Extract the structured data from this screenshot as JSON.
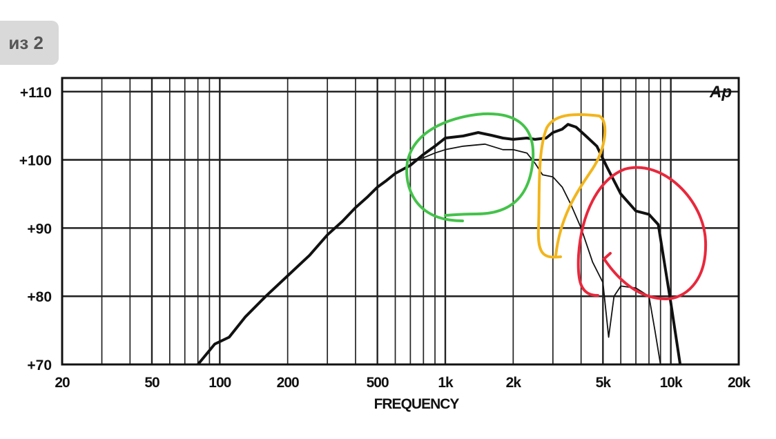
{
  "page_indicator": "из 2",
  "chart_data": {
    "type": "line",
    "title": "",
    "xlabel": "FREQUENCY",
    "ylabel": "",
    "logo": "Ap",
    "x_scale": "log",
    "xlim": [
      20,
      20000
    ],
    "ylim": [
      70,
      112
    ],
    "x_ticks": [
      {
        "v": 20,
        "label": "20"
      },
      {
        "v": 50,
        "label": "50"
      },
      {
        "v": 100,
        "label": "100"
      },
      {
        "v": 200,
        "label": "200"
      },
      {
        "v": 500,
        "label": "500"
      },
      {
        "v": 1000,
        "label": "1k"
      },
      {
        "v": 2000,
        "label": "2k"
      },
      {
        "v": 5000,
        "label": "5k"
      },
      {
        "v": 10000,
        "label": "10k"
      },
      {
        "v": 20000,
        "label": "20k"
      }
    ],
    "y_ticks": [
      {
        "v": 70,
        "label": "+70"
      },
      {
        "v": 80,
        "label": "+80"
      },
      {
        "v": 90,
        "label": "+90"
      },
      {
        "v": 100,
        "label": "+100"
      },
      {
        "v": 110,
        "label": "+110"
      }
    ],
    "grid": true,
    "series": [
      {
        "style": "thick",
        "x": [
          80,
          95,
          110,
          130,
          160,
          200,
          250,
          300,
          350,
          400,
          450,
          500,
          550,
          600,
          700,
          800,
          900,
          1000,
          1200,
          1400,
          1600,
          1800,
          2000,
          2300,
          2500,
          2800,
          3000,
          3300,
          3500,
          3800,
          4200,
          4700,
          5200,
          6000,
          7000,
          8000,
          8800,
          10000,
          11000
        ],
        "y": [
          70,
          73,
          74,
          77,
          80,
          83,
          86,
          89,
          91,
          93,
          94.5,
          96,
          97,
          98,
          99.2,
          100.8,
          102,
          103.2,
          103.5,
          104,
          103.6,
          103.2,
          103,
          103.2,
          103,
          103.2,
          104,
          104.5,
          105.2,
          104.8,
          103.5,
          102,
          99,
          95,
          92.5,
          92,
          90.5,
          79,
          70
        ]
      },
      {
        "style": "thin",
        "x": [
          700,
          800,
          900,
          1000,
          1200,
          1500,
          1800,
          2000,
          2300,
          2500,
          2700,
          3000,
          3300,
          3600,
          4000,
          4500,
          5000,
          5300,
          5600,
          6000,
          7000,
          8000,
          8500,
          9000
        ],
        "y": [
          100,
          100.3,
          101,
          101.5,
          102,
          102.3,
          101.5,
          101.5,
          101,
          99.5,
          97.8,
          97.5,
          96,
          93.5,
          90,
          85,
          82,
          74,
          80,
          81.5,
          81.2,
          80,
          75,
          70
        ]
      }
    ],
    "annotations": [
      {
        "shape": "loop",
        "color": "#44c24a",
        "around": "1k-2k plateau"
      },
      {
        "shape": "loop",
        "color": "#f2b51c",
        "around": "3k-4k peak"
      },
      {
        "shape": "loop",
        "color": "#e8283c",
        "around": "5k-10k roll-off"
      }
    ]
  }
}
